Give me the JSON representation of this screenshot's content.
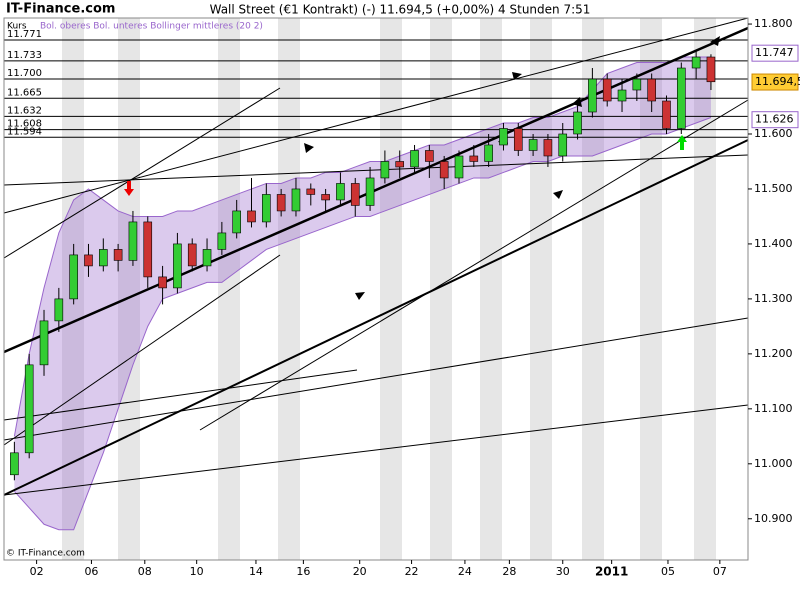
{
  "chart_data": {
    "type": "candlestick",
    "site": "IT-Finance.com",
    "title": "Wall Street (€1 Kontrakt) (-)    11.694,5 (+0,00%)    4 Stunden  7:51",
    "legend_price": "Kurs",
    "legend_bands": "Bol. oberes Bol. unteres Bollinger mittleres (20 2)",
    "copyright": "© IT-Finance.com",
    "up_color": "#33cc33",
    "down_color": "#cc3333",
    "band_color": "#9966cc",
    "xlim": [
      -0.7,
      49.5
    ],
    "xticks": [
      {
        "value": 1.5,
        "label": "02"
      },
      {
        "value": 5.2,
        "label": "06"
      },
      {
        "value": 8.8,
        "label": "08"
      },
      {
        "value": 12.3,
        "label": "10"
      },
      {
        "value": 16.3,
        "label": "14"
      },
      {
        "value": 19.5,
        "label": "16"
      },
      {
        "value": 23.3,
        "label": "20"
      },
      {
        "value": 26.8,
        "label": "22"
      },
      {
        "value": 30.4,
        "label": "24"
      },
      {
        "value": 33.4,
        "label": "28"
      },
      {
        "value": 37,
        "label": "30"
      },
      {
        "value": 40.3,
        "label": "2011"
      },
      {
        "value": 44.1,
        "label": "05"
      },
      {
        "value": 47.6,
        "label": "07"
      }
    ],
    "ylim": [
      10.825,
      11.811
    ],
    "yticks": [
      {
        "value": 11.8,
        "label": "11.800"
      },
      {
        "value": 11.6,
        "label": "11.600"
      },
      {
        "value": 11.5,
        "label": "11.500"
      },
      {
        "value": 11.4,
        "label": "11.400"
      },
      {
        "value": 11.3,
        "label": "11.300"
      },
      {
        "value": 11.2,
        "label": "11.200"
      },
      {
        "value": 11.1,
        "label": "11.100"
      },
      {
        "value": 11,
        "label": "11.000"
      },
      {
        "value": 10.9,
        "label": "10.900"
      }
    ],
    "open": [
      10.98,
      11.02,
      11.18,
      11.26,
      11.3,
      11.38,
      11.36,
      11.39,
      11.37,
      11.44,
      11.34,
      11.32,
      11.4,
      11.36,
      11.39,
      11.42,
      11.46,
      11.44,
      11.49,
      11.46,
      11.5,
      11.49,
      11.48,
      11.51,
      11.47,
      11.52,
      11.55,
      11.54,
      11.57,
      11.55,
      11.52,
      11.56,
      11.55,
      11.58,
      11.61,
      11.57,
      11.59,
      11.56,
      11.6,
      11.64,
      11.7,
      11.66,
      11.68,
      11.7,
      11.66,
      11.61,
      11.72,
      11.74
    ],
    "high": [
      11.04,
      11.2,
      11.28,
      11.32,
      11.4,
      11.4,
      11.41,
      11.4,
      11.46,
      11.45,
      11.36,
      11.42,
      11.41,
      11.41,
      11.44,
      11.48,
      11.52,
      11.51,
      11.5,
      11.52,
      11.51,
      11.5,
      11.53,
      11.52,
      11.54,
      11.57,
      11.57,
      11.58,
      11.58,
      11.56,
      11.57,
      11.58,
      11.6,
      11.62,
      11.62,
      11.6,
      11.6,
      11.62,
      11.66,
      11.72,
      11.71,
      11.7,
      11.71,
      11.71,
      11.67,
      11.73,
      11.75,
      11.745
    ],
    "low": [
      10.97,
      11.01,
      11.16,
      11.24,
      11.29,
      11.34,
      11.35,
      11.35,
      11.36,
      11.32,
      11.29,
      11.31,
      11.35,
      11.35,
      11.38,
      11.41,
      11.43,
      11.43,
      11.45,
      11.45,
      11.47,
      11.46,
      11.47,
      11.45,
      11.46,
      11.51,
      11.52,
      11.53,
      11.52,
      11.5,
      11.51,
      11.54,
      11.54,
      11.57,
      11.56,
      11.56,
      11.54,
      11.55,
      11.59,
      11.63,
      11.65,
      11.64,
      11.66,
      11.64,
      11.6,
      11.6,
      11.7,
      11.68
    ],
    "close": [
      11.02,
      11.18,
      11.26,
      11.3,
      11.38,
      11.36,
      11.39,
      11.37,
      11.44,
      11.34,
      11.32,
      11.4,
      11.36,
      11.39,
      11.42,
      11.46,
      11.44,
      11.49,
      11.46,
      11.5,
      11.49,
      11.48,
      11.51,
      11.47,
      11.52,
      11.55,
      11.54,
      11.57,
      11.55,
      11.52,
      11.56,
      11.55,
      11.58,
      11.61,
      11.57,
      11.59,
      11.56,
      11.6,
      11.64,
      11.7,
      11.66,
      11.68,
      11.7,
      11.66,
      11.61,
      11.72,
      11.74,
      11.695
    ],
    "band_upper": [
      11.05,
      11.2,
      11.32,
      11.42,
      11.48,
      11.5,
      11.48,
      11.46,
      11.45,
      11.45,
      11.45,
      11.46,
      11.46,
      11.47,
      11.48,
      11.49,
      11.5,
      11.51,
      11.51,
      11.52,
      11.52,
      11.53,
      11.53,
      11.54,
      11.55,
      11.55,
      11.56,
      11.57,
      11.58,
      11.58,
      11.59,
      11.6,
      11.61,
      11.62,
      11.62,
      11.63,
      11.63,
      11.64,
      11.65,
      11.68,
      11.71,
      11.72,
      11.73,
      11.73,
      11.73,
      11.74,
      11.74,
      11.74
    ],
    "band_lower": [
      10.95,
      10.92,
      10.89,
      10.88,
      10.88,
      10.95,
      11.02,
      11.1,
      11.18,
      11.25,
      11.3,
      11.31,
      11.32,
      11.33,
      11.33,
      11.35,
      11.37,
      11.39,
      11.4,
      11.41,
      11.42,
      11.43,
      11.44,
      11.45,
      11.45,
      11.46,
      11.47,
      11.48,
      11.49,
      11.5,
      11.51,
      11.52,
      11.52,
      11.53,
      11.54,
      11.55,
      11.55,
      11.56,
      11.56,
      11.56,
      11.57,
      11.58,
      11.59,
      11.6,
      11.6,
      11.61,
      11.62,
      11.63
    ],
    "levels": [
      {
        "value": 11.771,
        "label": "11.771"
      },
      {
        "value": 11.733,
        "label": "11.733"
      },
      {
        "value": 11.7,
        "label": "11.700"
      },
      {
        "value": 11.665,
        "label": "11.665"
      },
      {
        "value": 11.632,
        "label": "11.632"
      },
      {
        "value": 11.608,
        "label": "11.608"
      },
      {
        "value": 11.594,
        "label": "11.594"
      }
    ],
    "price_tags": [
      {
        "value": 11.747,
        "label": "11.747",
        "color": "#ffffff",
        "border": "#9966cc"
      },
      {
        "value": 11.6945,
        "label": "11.694,5",
        "color": "#ffcc33",
        "border": "#cc8800"
      },
      {
        "value": 11.626,
        "label": "11.626",
        "color": "#ffffff",
        "border": "#9966cc"
      }
    ]
  }
}
